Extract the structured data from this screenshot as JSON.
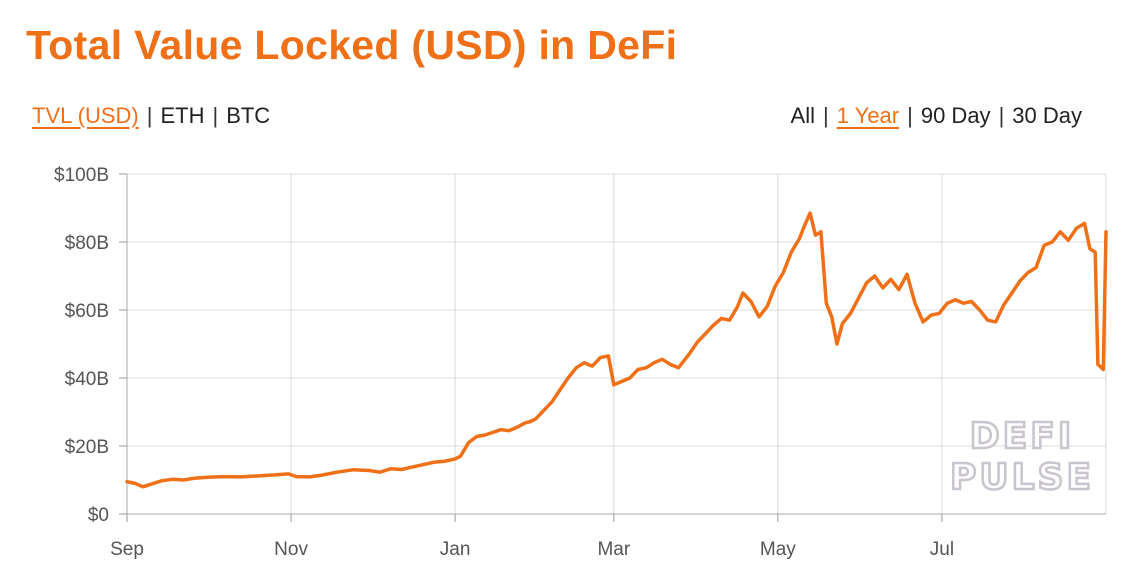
{
  "colors": {
    "accent": "#f07017",
    "text": "#222222",
    "grid": "#dcdcdc",
    "axis": "#555555"
  },
  "header": {
    "title": "Total Value Locked (USD) in DeFi"
  },
  "metric_tabs": [
    {
      "label": "TVL (USD)",
      "active": true
    },
    {
      "label": "ETH",
      "active": false
    },
    {
      "label": "BTC",
      "active": false
    }
  ],
  "range_tabs": [
    {
      "label": "All",
      "active": false
    },
    {
      "label": "1 Year",
      "active": true
    },
    {
      "label": "90 Day",
      "active": false
    },
    {
      "label": "30 Day",
      "active": false
    }
  ],
  "separator": "|",
  "watermark": {
    "line1": "DEFI",
    "line2": "PULSE"
  },
  "chart_data": {
    "type": "line",
    "title": "",
    "xlabel": "",
    "ylabel": "",
    "grid": true,
    "x_range": [
      "2020-09-01",
      "2021-08-31"
    ],
    "ylim": [
      0,
      100
    ],
    "y_unit": "billion USD",
    "y_ticks": [
      0,
      20,
      40,
      60,
      80,
      100
    ],
    "y_tick_labels": [
      "$0",
      "$20B",
      "$40B",
      "$60B",
      "$80B",
      "$100B"
    ],
    "x_ticks": [
      "2020-09-01",
      "2020-11-01",
      "2021-01-01",
      "2021-03-01",
      "2021-05-01",
      "2021-07-01"
    ],
    "x_tick_labels": [
      "Sep",
      "Nov",
      "Jan",
      "Mar",
      "May",
      "Jul"
    ],
    "series": [
      {
        "values": [
          [
            "2020-09-01",
            9.5
          ],
          [
            "2020-09-04",
            9.0
          ],
          [
            "2020-09-07",
            8.0
          ],
          [
            "2020-09-10",
            8.8
          ],
          [
            "2020-09-14",
            9.8
          ],
          [
            "2020-09-18",
            10.2
          ],
          [
            "2020-09-22",
            10.0
          ],
          [
            "2020-09-26",
            10.5
          ],
          [
            "2020-10-01",
            10.8
          ],
          [
            "2020-10-07",
            11.0
          ],
          [
            "2020-10-13",
            10.9
          ],
          [
            "2020-10-20",
            11.2
          ],
          [
            "2020-10-26",
            11.5
          ],
          [
            "2020-10-31",
            11.8
          ],
          [
            "2020-11-03",
            11.0
          ],
          [
            "2020-11-08",
            10.9
          ],
          [
            "2020-11-13",
            11.5
          ],
          [
            "2020-11-18",
            12.3
          ],
          [
            "2020-11-24",
            13.0
          ],
          [
            "2020-11-30",
            12.8
          ],
          [
            "2020-12-04",
            12.3
          ],
          [
            "2020-12-08",
            13.3
          ],
          [
            "2020-12-12",
            13.1
          ],
          [
            "2020-12-16",
            13.8
          ],
          [
            "2020-12-20",
            14.5
          ],
          [
            "2020-12-24",
            15.2
          ],
          [
            "2020-12-28",
            15.5
          ],
          [
            "2021-01-01",
            16.2
          ],
          [
            "2021-01-03",
            17.0
          ],
          [
            "2021-01-06",
            21.0
          ],
          [
            "2021-01-09",
            22.8
          ],
          [
            "2021-01-12",
            23.2
          ],
          [
            "2021-01-15",
            24.0
          ],
          [
            "2021-01-18",
            24.8
          ],
          [
            "2021-01-21",
            24.5
          ],
          [
            "2021-01-24",
            25.5
          ],
          [
            "2021-01-27",
            26.8
          ],
          [
            "2021-01-29",
            27.2
          ],
          [
            "2021-01-31",
            28.0
          ],
          [
            "2021-02-03",
            30.5
          ],
          [
            "2021-02-06",
            33.0
          ],
          [
            "2021-02-09",
            36.5
          ],
          [
            "2021-02-12",
            40.0
          ],
          [
            "2021-02-15",
            43.0
          ],
          [
            "2021-02-18",
            44.5
          ],
          [
            "2021-02-21",
            43.5
          ],
          [
            "2021-02-24",
            46.0
          ],
          [
            "2021-02-27",
            46.5
          ],
          [
            "2021-03-01",
            38.0
          ],
          [
            "2021-03-04",
            39.0
          ],
          [
            "2021-03-07",
            40.0
          ],
          [
            "2021-03-10",
            42.5
          ],
          [
            "2021-03-13",
            43.0
          ],
          [
            "2021-03-16",
            44.5
          ],
          [
            "2021-03-19",
            45.5
          ],
          [
            "2021-03-22",
            44.0
          ],
          [
            "2021-03-25",
            43.0
          ],
          [
            "2021-03-29",
            47.0
          ],
          [
            "2021-04-01",
            50.5
          ],
          [
            "2021-04-04",
            53.0
          ],
          [
            "2021-04-07",
            55.5
          ],
          [
            "2021-04-10",
            57.5
          ],
          [
            "2021-04-13",
            57.0
          ],
          [
            "2021-04-16",
            61.0
          ],
          [
            "2021-04-18",
            65.0
          ],
          [
            "2021-04-21",
            62.5
          ],
          [
            "2021-04-24",
            58.0
          ],
          [
            "2021-04-27",
            61.0
          ],
          [
            "2021-04-30",
            67.0
          ],
          [
            "2021-05-03",
            71.0
          ],
          [
            "2021-05-06",
            77.0
          ],
          [
            "2021-05-09",
            81.0
          ],
          [
            "2021-05-11",
            85.0
          ],
          [
            "2021-05-13",
            88.5
          ],
          [
            "2021-05-15",
            82.0
          ],
          [
            "2021-05-17",
            83.0
          ],
          [
            "2021-05-19",
            62.0
          ],
          [
            "2021-05-21",
            58.0
          ],
          [
            "2021-05-23",
            50.0
          ],
          [
            "2021-05-25",
            56.0
          ],
          [
            "2021-05-28",
            59.0
          ],
          [
            "2021-05-31",
            63.5
          ],
          [
            "2021-06-03",
            68.0
          ],
          [
            "2021-06-06",
            70.0
          ],
          [
            "2021-06-09",
            66.5
          ],
          [
            "2021-06-12",
            69.0
          ],
          [
            "2021-06-15",
            66.0
          ],
          [
            "2021-06-18",
            70.5
          ],
          [
            "2021-06-21",
            62.0
          ],
          [
            "2021-06-24",
            56.5
          ],
          [
            "2021-06-27",
            58.5
          ],
          [
            "2021-06-30",
            59.0
          ],
          [
            "2021-07-03",
            62.0
          ],
          [
            "2021-07-06",
            63.0
          ],
          [
            "2021-07-09",
            62.0
          ],
          [
            "2021-07-12",
            62.5
          ],
          [
            "2021-07-15",
            60.0
          ],
          [
            "2021-07-18",
            57.0
          ],
          [
            "2021-07-21",
            56.5
          ],
          [
            "2021-07-24",
            61.5
          ],
          [
            "2021-07-27",
            65.0
          ],
          [
            "2021-07-30",
            68.5
          ],
          [
            "2021-08-02",
            71.0
          ],
          [
            "2021-08-05",
            72.5
          ],
          [
            "2021-08-08",
            79.0
          ],
          [
            "2021-08-11",
            80.0
          ],
          [
            "2021-08-14",
            83.0
          ],
          [
            "2021-08-17",
            80.5
          ],
          [
            "2021-08-20",
            84.0
          ],
          [
            "2021-08-23",
            85.5
          ],
          [
            "2021-08-25",
            78.0
          ],
          [
            "2021-08-27",
            77.0
          ],
          [
            "2021-08-28",
            44.0
          ],
          [
            "2021-08-30",
            42.5
          ],
          [
            "2021-08-31",
            83.0
          ]
        ]
      }
    ]
  }
}
